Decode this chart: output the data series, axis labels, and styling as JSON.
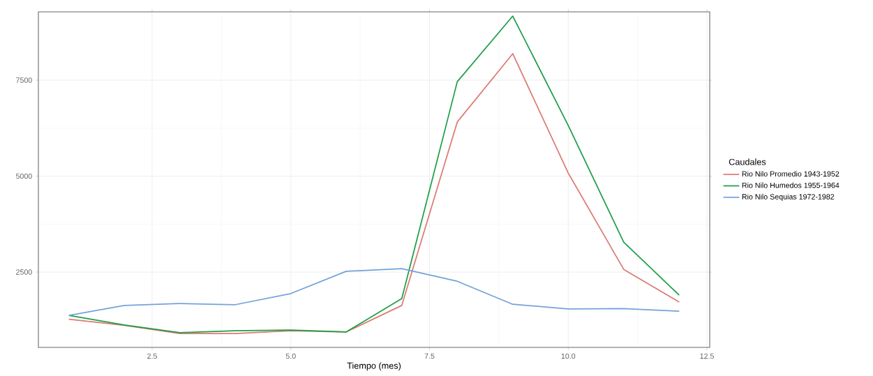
{
  "chart_data": {
    "type": "line",
    "xlabel": "Tiempo (mes)",
    "legend_title": "Caudales",
    "x": [
      1,
      2,
      3,
      4,
      5,
      6,
      7,
      8,
      9,
      10,
      11,
      12
    ],
    "series": [
      {
        "name": "Rio Nilo  Promedio 1943-1952",
        "color": "#dc7a72",
        "values": [
          1270,
          1110,
          900,
          900,
          970,
          940,
          1630,
          6410,
          8190,
          5080,
          2570,
          1720
        ]
      },
      {
        "name": "Rio Nilo Humedos 1955-1964",
        "color": "#1f9e48",
        "values": [
          1370,
          1120,
          920,
          970,
          990,
          940,
          1810,
          7460,
          9170,
          6320,
          3280,
          1900
        ]
      },
      {
        "name": "Rio Nilo Sequias 1972-1982",
        "color": "#74a2dc",
        "values": [
          1370,
          1630,
          1680,
          1650,
          1940,
          2520,
          2590,
          2260,
          1660,
          1540,
          1550,
          1480
        ]
      }
    ],
    "xlim": [
      0.45,
      12.55
    ],
    "ylim": [
      537,
      9280
    ],
    "xticks": [
      2.5,
      {
        "value": 5,
        "label": "5.0"
      },
      7.5,
      {
        "value": 10,
        "label": "10.0"
      },
      12.5
    ],
    "yticks": [
      2500,
      5000,
      7500
    ],
    "grid": true,
    "legend": "right",
    "line_style": "solid",
    "marker": "none"
  }
}
